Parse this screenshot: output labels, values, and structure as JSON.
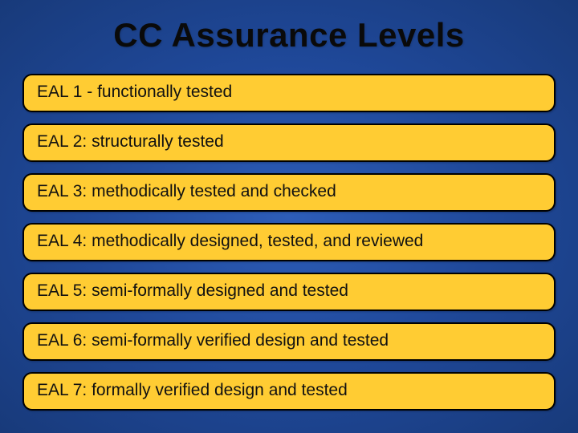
{
  "slide": {
    "title": "CC Assurance Levels",
    "items": [
      "EAL 1 - functionally tested",
      "EAL 2: structurally tested",
      "EAL 3: methodically tested and checked",
      "EAL 4: methodically designed, tested, and reviewed",
      "EAL 5: semi-formally designed and tested",
      "EAL 6: semi-formally verified design and tested",
      "EAL 7: formally verified design and tested"
    ],
    "colors": {
      "item_bg": "#ffcc33",
      "item_border": "#000000",
      "title_color": "#0a0a0a",
      "bg_center": "#2d5db8",
      "bg_mid": "#1f4899",
      "bg_edge": "#183a7a"
    },
    "layout": {
      "title_fontsize": 42,
      "item_fontsize": 21,
      "item_border_radius": 12,
      "item_gap": 14,
      "side_padding": 28
    }
  }
}
